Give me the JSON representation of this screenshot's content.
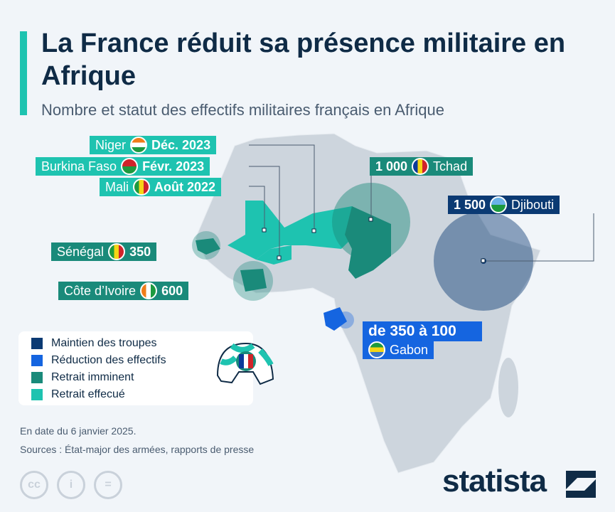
{
  "title": "La France réduit sa présence militaire en Afrique",
  "subtitle": "Nombre et statut des effectifs militaires français en Afrique",
  "labels": {
    "niger": {
      "country": "Niger",
      "value": "Déc. 2023",
      "status": "Retrait effecué"
    },
    "burkina": {
      "country": "Burkina Faso",
      "value": "Févr. 2023",
      "status": "Retrait effecué"
    },
    "mali": {
      "country": "Mali",
      "value": "Août 2022",
      "status": "Retrait effecué"
    },
    "senegal": {
      "country": "Sénégal",
      "value": "350",
      "status": "Retrait imminent"
    },
    "civ": {
      "country": "Côte d’Ivoire",
      "value": "600",
      "status": "Retrait imminent"
    },
    "tchad": {
      "country": "Tchad",
      "value": "1 000",
      "status": "Retrait imminent"
    },
    "djibouti": {
      "country": "Djibouti",
      "value": "1 500",
      "status": "Maintien des troupes"
    },
    "gabon": {
      "country": "Gabon",
      "value": "de 350 à 100",
      "status": "Réduction des effectifs"
    }
  },
  "legend": [
    {
      "label": "Maintien des troupes",
      "color": "#0b3a73"
    },
    {
      "label": "Réduction des effectifs",
      "color": "#1565e0"
    },
    {
      "label": "Retrait imminent",
      "color": "#1a8a7a"
    },
    {
      "label": "Retrait effecué",
      "color": "#1ec3b0"
    }
  ],
  "date_note": "En date du 6 janvier 2025.",
  "sources": "Sources : État-major des armées, rapports de presse",
  "license_icons": [
    "cc-icon",
    "attribution-icon",
    "no-derivatives-icon"
  ],
  "brand": "statista"
}
